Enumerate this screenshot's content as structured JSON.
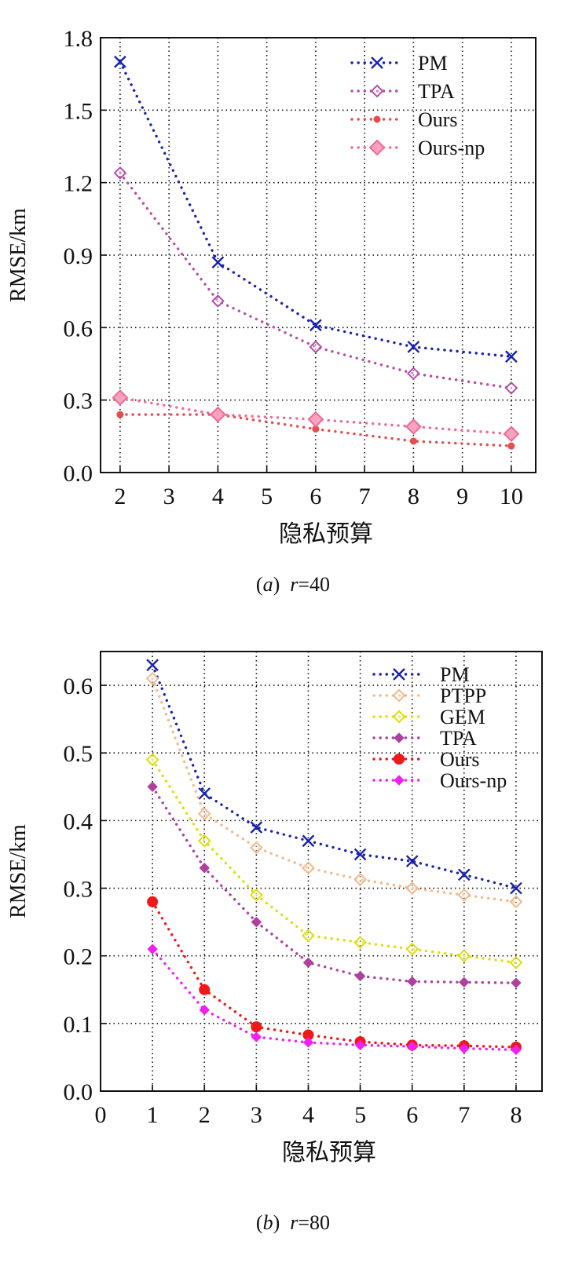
{
  "chart_data": [
    {
      "type": "line",
      "caption": {
        "tag": "a",
        "var": "r",
        "eq": "=40"
      },
      "xlabel": "隐私预算",
      "ylabel": "RMSE/km",
      "xlim": [
        1.6,
        10.5
      ],
      "ylim": [
        0.0,
        1.8
      ],
      "xticks": [
        2,
        3,
        4,
        5,
        6,
        7,
        8,
        9,
        10
      ],
      "yticks": [
        0.0,
        0.3,
        0.6,
        0.9,
        1.2,
        1.5,
        1.8
      ],
      "ytick_labels": [
        "0.0",
        "0.3",
        "0.6",
        "0.9",
        "1.2",
        "1.5",
        "1.8"
      ],
      "grid": true,
      "legend_position": "top-right",
      "x": [
        2,
        4,
        6,
        8,
        10
      ],
      "series": [
        {
          "name": "PM",
          "color": "#1a22b0",
          "marker": "x",
          "values": [
            1.7,
            0.87,
            0.61,
            0.52,
            0.48
          ]
        },
        {
          "name": "TPA",
          "color": "#b64ea8",
          "marker": "diamond-open",
          "values": [
            1.24,
            0.71,
            0.52,
            0.41,
            0.35
          ]
        },
        {
          "name": "Ours",
          "color": "#e84c4c",
          "marker": "dot-small",
          "values": [
            0.24,
            0.24,
            0.18,
            0.13,
            0.11
          ]
        },
        {
          "name": "Ours-np",
          "color": "#f06a96",
          "marker": "diamond-big",
          "values": [
            0.31,
            0.24,
            0.22,
            0.19,
            0.16
          ]
        }
      ]
    },
    {
      "type": "line",
      "caption": {
        "tag": "b",
        "var": "r",
        "eq": "=80"
      },
      "xlabel": "隐私预算",
      "ylabel": "RMSE/km",
      "xlim": [
        0,
        8.5
      ],
      "ylim": [
        0.0,
        0.65
      ],
      "xticks": [
        0,
        1,
        2,
        3,
        4,
        5,
        6,
        7,
        8
      ],
      "yticks": [
        0.0,
        0.1,
        0.2,
        0.3,
        0.4,
        0.5,
        0.6
      ],
      "ytick_labels": [
        "0.0",
        "0.1",
        "0.2",
        "0.3",
        "0.4",
        "0.5",
        "0.6"
      ],
      "grid": true,
      "legend_position": "top-right",
      "x": [
        1,
        2,
        3,
        4,
        5,
        6,
        7,
        8
      ],
      "series": [
        {
          "name": "PM",
          "color": "#1a22b0",
          "marker": "x",
          "values": [
            0.63,
            0.44,
            0.39,
            0.37,
            0.35,
            0.34,
            0.32,
            0.3
          ]
        },
        {
          "name": "PTPP",
          "color": "#f4b98a",
          "marker": "diamond-open",
          "values": [
            0.61,
            0.41,
            0.36,
            0.33,
            0.313,
            0.3,
            0.29,
            0.28
          ]
        },
        {
          "name": "GEM",
          "color": "#dede10",
          "marker": "diamond-open",
          "values": [
            0.49,
            0.37,
            0.29,
            0.23,
            0.22,
            0.21,
            0.2,
            0.19
          ]
        },
        {
          "name": "TPA",
          "color": "#b0409e",
          "marker": "diamond-filled",
          "values": [
            0.45,
            0.33,
            0.25,
            0.19,
            0.17,
            0.162,
            0.161,
            0.16
          ]
        },
        {
          "name": "Ours",
          "color": "#f01818",
          "marker": "dot-big",
          "values": [
            0.28,
            0.15,
            0.095,
            0.083,
            0.073,
            0.068,
            0.067,
            0.065
          ]
        },
        {
          "name": "Ours-np",
          "color": "#f020f0",
          "marker": "diamond-filled",
          "values": [
            0.21,
            0.12,
            0.08,
            0.072,
            0.068,
            0.066,
            0.063,
            0.061
          ]
        }
      ]
    }
  ]
}
